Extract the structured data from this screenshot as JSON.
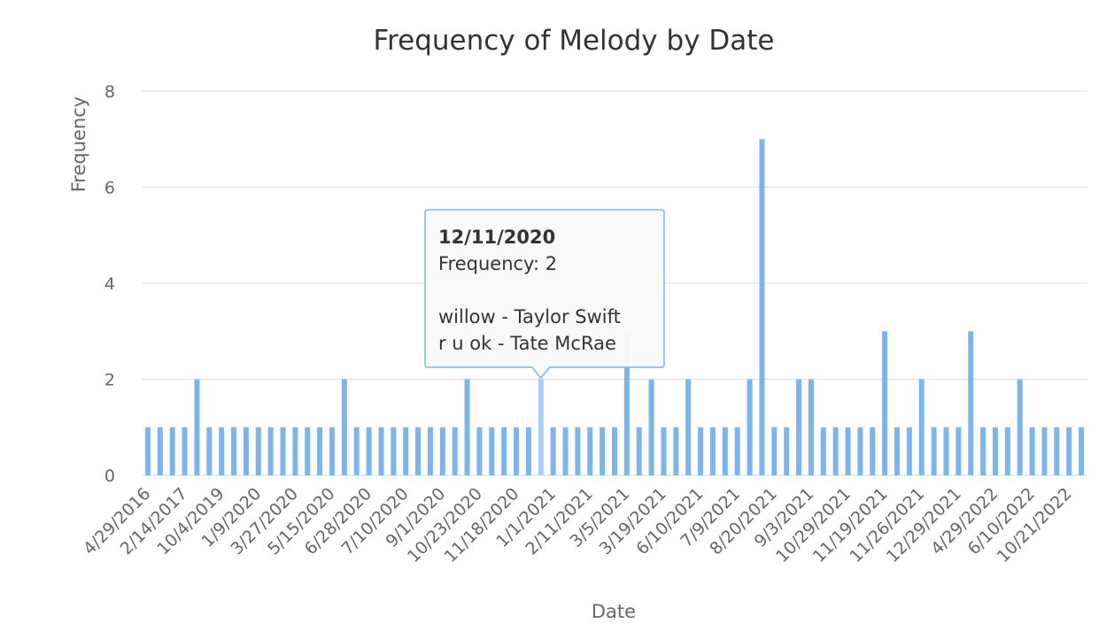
{
  "chart_data": {
    "type": "bar",
    "title": "Frequency of Melody by Date",
    "x_label": "Date",
    "y_label": "Frequency",
    "categories": [
      "4/29/2016",
      null,
      null,
      "2/14/2017",
      null,
      null,
      "10/4/2019",
      null,
      null,
      "1/9/2020",
      null,
      null,
      "3/27/2020",
      null,
      null,
      "5/15/2020",
      null,
      null,
      "6/28/2020",
      null,
      null,
      "7/10/2020",
      null,
      null,
      "9/1/2020",
      null,
      null,
      "10/23/2020",
      null,
      null,
      "11/18/2020",
      null,
      null,
      "1/1/2021",
      null,
      null,
      "2/11/2021",
      null,
      null,
      "3/5/2021",
      null,
      null,
      "3/19/2021",
      null,
      null,
      "6/10/2021",
      null,
      null,
      "7/9/2021",
      null,
      null,
      "8/20/2021",
      null,
      null,
      "9/3/2021",
      null,
      null,
      "10/29/2021",
      null,
      null,
      "11/19/2021",
      null,
      null,
      "11/26/2021",
      null,
      null,
      "12/29/2021",
      null,
      null,
      "4/29/2022",
      null,
      null,
      "6/10/2022",
      null,
      null,
      "10/21/2022",
      null
    ],
    "values": [
      1,
      1,
      1,
      1,
      2,
      1,
      1,
      1,
      1,
      1,
      1,
      1,
      1,
      1,
      1,
      1,
      2,
      1,
      1,
      1,
      1,
      1,
      1,
      1,
      1,
      1,
      2,
      1,
      1,
      1,
      1,
      1,
      2,
      1,
      1,
      1,
      1,
      1,
      1,
      3,
      1,
      2,
      1,
      1,
      2,
      1,
      1,
      1,
      1,
      2,
      7,
      1,
      1,
      2,
      2,
      1,
      1,
      1,
      1,
      1,
      3,
      1,
      1,
      2,
      1,
      1,
      1,
      3,
      1,
      1,
      1,
      2,
      1,
      1,
      1,
      1,
      1
    ],
    "color": "#7cb5ec",
    "highlight_color": "#a9cff4",
    "ylim": [
      0,
      8
    ],
    "yticks": [
      0,
      2,
      4,
      6,
      8
    ],
    "grid": true,
    "tooltip": {
      "index": 32,
      "date": "12/11/2020",
      "line": "Frequency: 2",
      "items": [
        "willow - Taylor Swift",
        "r u ok - Tate McRae"
      ]
    }
  }
}
